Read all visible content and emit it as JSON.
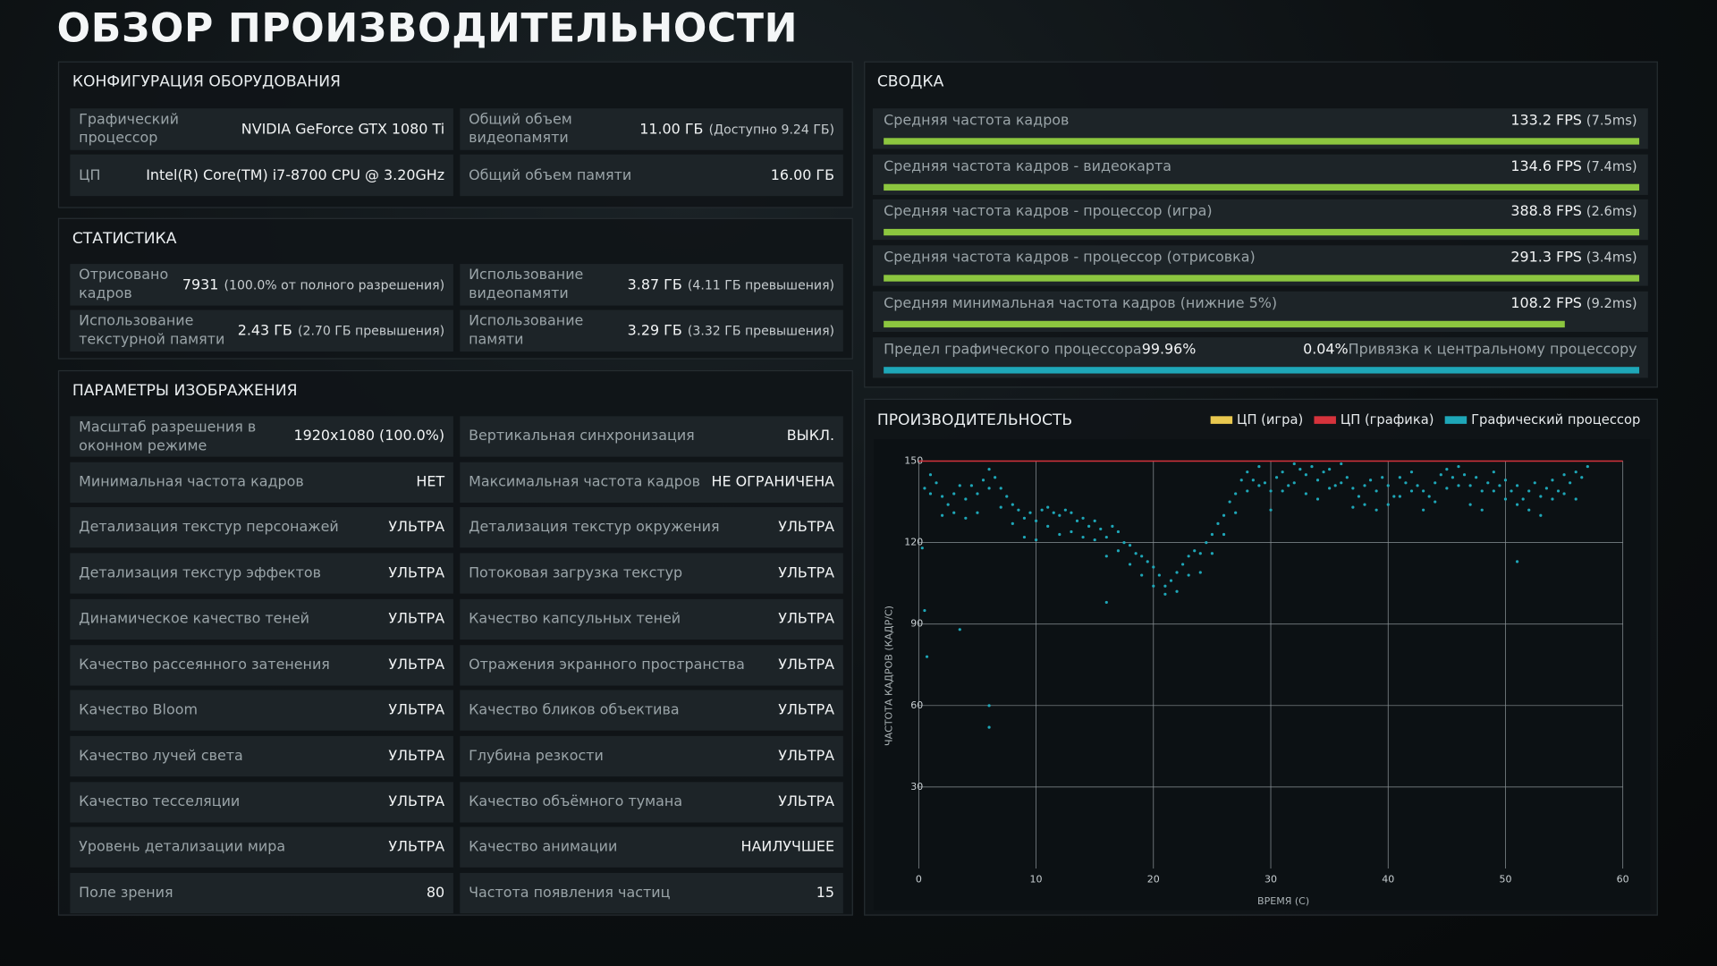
{
  "title": "ОБЗОР ПРОИЗВОДИТЕЛЬНОСТИ",
  "hardware": {
    "heading": "КОНФИГУРАЦИЯ ОБОРУДОВАНИЯ",
    "items": [
      {
        "label": "Графический процессор",
        "value": "NVIDIA GeForce GTX 1080 Ti"
      },
      {
        "label": "Общий объем видеопамяти",
        "value": "11.00 ГБ",
        "note": "(Доступно 9.24 ГБ)"
      },
      {
        "label": "ЦП",
        "value": "Intel(R) Core(TM) i7-8700 CPU @ 3.20GHz"
      },
      {
        "label": "Общий объем памяти",
        "value": "16.00 ГБ"
      }
    ]
  },
  "statistics": {
    "heading": "СТАТИСТИКА",
    "items": [
      {
        "label": "Отрисовано кадров",
        "value": "7931",
        "note": "(100.0% от полного разрешения)"
      },
      {
        "label": "Использование видеопамяти",
        "value": "3.87 ГБ",
        "note": "(4.11 ГБ превышения)"
      },
      {
        "label": "Использование текстурной памяти",
        "value": "2.43 ГБ",
        "note": "(2.70 ГБ превышения)"
      },
      {
        "label": "Использование памяти",
        "value": "3.29 ГБ",
        "note": "(3.32 ГБ превышения)"
      }
    ]
  },
  "image_settings": {
    "heading": "ПАРАМЕТРЫ ИЗОБРАЖЕНИЯ",
    "items": [
      {
        "label": "Масштаб разрешения в оконном режиме",
        "value": "1920x1080 (100.0%)"
      },
      {
        "label": "Вертикальная синхронизация",
        "value": "ВЫКЛ."
      },
      {
        "label": "Минимальная частота кадров",
        "value": "НЕТ"
      },
      {
        "label": "Максимальная частота кадров",
        "value": "НЕ ОГРАНИЧЕНА"
      },
      {
        "label": "Детализация текстур персонажей",
        "value": "УЛЬТРА"
      },
      {
        "label": "Детализация текстур окружения",
        "value": "УЛЬТРА"
      },
      {
        "label": "Детализация текстур эффектов",
        "value": "УЛЬТРА"
      },
      {
        "label": "Потоковая загрузка текстур",
        "value": "УЛЬТРА"
      },
      {
        "label": "Динамическое качество теней",
        "value": "УЛЬТРА"
      },
      {
        "label": "Качество капсульных теней",
        "value": "УЛЬТРА"
      },
      {
        "label": "Качество рассеянного затенения",
        "value": "УЛЬТРА"
      },
      {
        "label": "Отражения экранного пространства",
        "value": "УЛЬТРА"
      },
      {
        "label": "Качество Bloom",
        "value": "УЛЬТРА"
      },
      {
        "label": "Качество бликов объектива",
        "value": "УЛЬТРА"
      },
      {
        "label": "Качество лучей света",
        "value": "УЛЬТРА"
      },
      {
        "label": "Глубина резкости",
        "value": "УЛЬТРА"
      },
      {
        "label": "Качество тесселяции",
        "value": "УЛЬТРА"
      },
      {
        "label": "Качество объёмного тумана",
        "value": "УЛЬТРА"
      },
      {
        "label": "Уровень детализации мира",
        "value": "УЛЬТРА"
      },
      {
        "label": "Качество анимации",
        "value": "НАИЛУЧШЕЕ"
      },
      {
        "label": "Поле зрения",
        "value": "80"
      },
      {
        "label": "Частота появления частиц",
        "value": "15"
      }
    ]
  },
  "summary": {
    "heading": "СВОДКА",
    "rows": [
      {
        "label": "Средняя частота кадров",
        "value": "133.2 FPS",
        "note": "(7.5ms)"
      },
      {
        "label": "Средняя частота кадров - видеокарта",
        "value": "134.6 FPS",
        "note": "(7.4ms)"
      },
      {
        "label": "Средняя частота кадров - процессор (игра)",
        "value": "388.8 FPS",
        "note": "(2.6ms)"
      },
      {
        "label": "Средняя частота кадров - процессор (отрисовка)",
        "value": "291.3 FPS",
        "note": "(3.4ms)"
      },
      {
        "label": "Средняя минимальная частота кадров (нижние 5%)",
        "value": "108.2 FPS",
        "note": "(9.2ms)"
      }
    ],
    "limit": {
      "gpu_label": "Предел графического процессора",
      "gpu_value": "99.96%",
      "cpu_value": "0.04%",
      "cpu_label": "Привязка к центральному процессору"
    }
  },
  "chart_data": {
    "type": "scatter",
    "title": "ПРОИЗВОДИТЕЛЬНОСТЬ",
    "x_label": "ВРЕМЯ (С)",
    "y_label": "ЧАСТОТА КАДРОВ (КАДР/С)",
    "xlim": [
      0,
      60
    ],
    "ylim": [
      0,
      150
    ],
    "xticks": [
      0,
      10,
      20,
      30,
      40,
      50,
      60
    ],
    "yticks": [
      30,
      60,
      90,
      120,
      150
    ],
    "grid": true,
    "series": [
      {
        "name": "ЦП (игра)",
        "color": "#e9c84f",
        "x": [],
        "values": []
      },
      {
        "name": "ЦП (графика)",
        "color": "#d6333c",
        "x": [],
        "values": []
      },
      {
        "name": "Графический процессор",
        "color": "#1ea7b8",
        "x": [
          0.5,
          1,
          1.5,
          2,
          2.5,
          3,
          3.5,
          4,
          4.5,
          5,
          5.5,
          6,
          6.5,
          7,
          7.5,
          8,
          8.5,
          9,
          9.5,
          10,
          10.5,
          11,
          11.5,
          12,
          12.5,
          13,
          13.5,
          14,
          14.5,
          15,
          15.5,
          16,
          16.5,
          17,
          17.5,
          18,
          18.5,
          19,
          19.5,
          20,
          20.5,
          21,
          21.5,
          22,
          22.5,
          23,
          23.5,
          24,
          24.5,
          25,
          25.5,
          26,
          26.5,
          27,
          27.5,
          28,
          28.5,
          29,
          29.5,
          30,
          30.5,
          31,
          31.5,
          32,
          32.5,
          33,
          33.5,
          34,
          34.5,
          35,
          35.5,
          36,
          36.5,
          37,
          37.5,
          38,
          38.5,
          39,
          39.5,
          40,
          40.5,
          41,
          41.5,
          42,
          42.5,
          43,
          43.5,
          44,
          44.5,
          45,
          45.5,
          46,
          46.5,
          47,
          47.5,
          48,
          48.5,
          49,
          49.5,
          50,
          50.5,
          51,
          51.5,
          52,
          52.5,
          53,
          53.5,
          54,
          54.5,
          55,
          55.5,
          56,
          56.5,
          57,
          1,
          2,
          3,
          4,
          5,
          6,
          7,
          8,
          9,
          10,
          11,
          12,
          13,
          14,
          15,
          16,
          17,
          18,
          19,
          20,
          21,
          22,
          23,
          24,
          25,
          26,
          27,
          28,
          29,
          30,
          31,
          32,
          33,
          34,
          35,
          36,
          37,
          38,
          39,
          40,
          41,
          42,
          43,
          44,
          45,
          46,
          47,
          48,
          49,
          50,
          51,
          52,
          53,
          54,
          55,
          56,
          0.3,
          0.5,
          0.7,
          3.5,
          6,
          6,
          16,
          51
        ],
        "values": [
          140,
          145,
          142,
          137,
          134,
          138,
          141,
          136,
          141,
          138,
          143,
          147,
          144,
          140,
          137,
          134,
          132,
          129,
          131,
          128,
          132,
          133,
          131,
          130,
          132,
          131,
          128,
          129,
          126,
          128,
          125,
          122,
          126,
          124,
          120,
          119,
          116,
          115,
          113,
          111,
          108,
          104,
          106,
          109,
          112,
          115,
          117,
          116,
          120,
          123,
          127,
          130,
          135,
          138,
          143,
          146,
          143,
          148,
          142,
          139,
          144,
          146,
          141,
          149,
          147,
          145,
          148,
          143,
          146,
          147,
          141,
          149,
          144,
          140,
          137,
          141,
          143,
          139,
          144,
          141,
          137,
          144,
          142,
          146,
          141,
          139,
          137,
          142,
          145,
          147,
          144,
          148,
          145,
          141,
          144,
          139,
          142,
          146,
          141,
          143,
          139,
          141,
          136,
          139,
          142,
          137,
          140,
          143,
          139,
          145,
          142,
          146,
          144,
          148,
          138,
          130,
          131,
          129,
          131,
          140,
          133,
          127,
          122,
          121,
          126,
          123,
          124,
          122,
          121,
          115,
          117,
          112,
          108,
          104,
          101,
          102,
          108,
          109,
          116,
          123,
          131,
          139,
          141,
          132,
          139,
          142,
          138,
          136,
          140,
          142,
          133,
          134,
          132,
          134,
          137,
          139,
          132,
          135,
          140,
          141,
          134,
          132,
          139,
          136,
          134,
          132,
          130,
          136,
          138,
          136,
          118,
          95,
          78,
          88,
          52,
          60,
          98,
          113
        ]
      }
    ]
  }
}
